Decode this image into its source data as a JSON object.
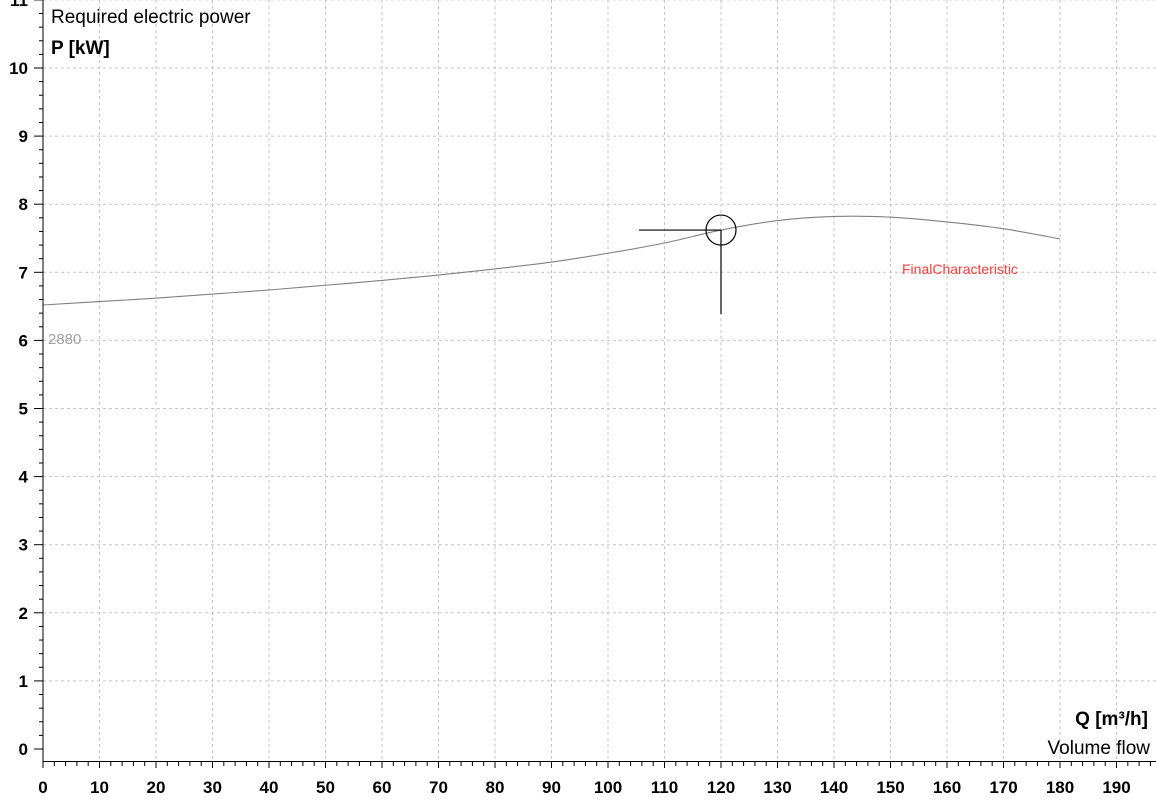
{
  "chart_data": {
    "type": "line",
    "title": "Required electric power",
    "ylabel": "P [kW]",
    "xlabel": "Q [m³/h]",
    "xlabel_caption": "Volume flow",
    "xlim": [
      0,
      197
    ],
    "ylim": [
      -0.2,
      11.2
    ],
    "x_ticks": [
      0,
      10,
      20,
      30,
      40,
      50,
      60,
      70,
      80,
      90,
      100,
      110,
      120,
      130,
      140,
      150,
      160,
      170,
      180,
      190
    ],
    "y_ticks": [
      0,
      1,
      2,
      3,
      4,
      5,
      6,
      7,
      8,
      9,
      10,
      11
    ],
    "grid": true,
    "series": [
      {
        "name": "2880",
        "color": "#808080",
        "x": [
          0,
          10,
          20,
          30,
          40,
          50,
          60,
          70,
          80,
          90,
          100,
          110,
          120,
          130,
          140,
          150,
          160,
          170,
          180
        ],
        "y": [
          6.52,
          6.57,
          6.62,
          6.68,
          6.74,
          6.81,
          6.88,
          6.96,
          7.05,
          7.15,
          7.28,
          7.43,
          7.62,
          7.76,
          7.82,
          7.81,
          7.74,
          7.64,
          7.49
        ]
      }
    ],
    "annotations": [
      {
        "text": "FinalCharacteristic",
        "color": "#ff4040"
      }
    ],
    "operating_point": {
      "x": 120,
      "y": 7.62
    }
  }
}
